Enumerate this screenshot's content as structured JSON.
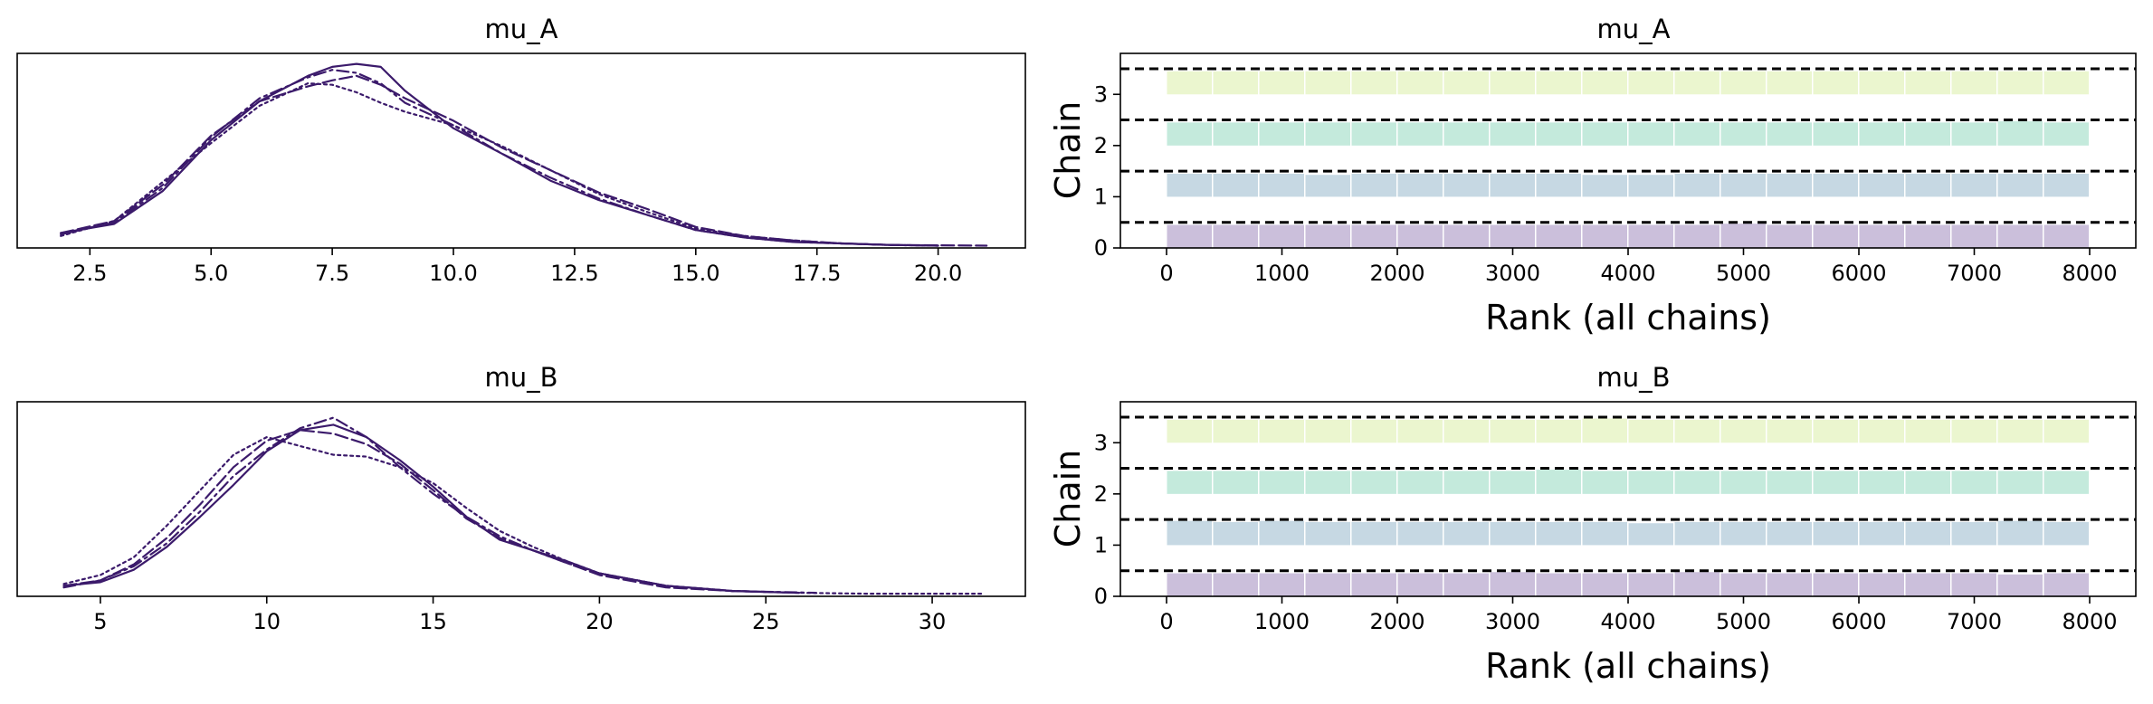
{
  "chart_data": [
    {
      "type": "line",
      "title": "mu_A",
      "xlabel": "",
      "ylabel": "",
      "xlim": [
        1.0,
        21.8
      ],
      "ylim": [
        0,
        0.13
      ],
      "yticks_visible": false,
      "xticks": [
        2.5,
        5.0,
        7.5,
        10.0,
        12.5,
        15.0,
        17.5,
        20.0
      ],
      "xtick_labels": [
        "2.5",
        "5.0",
        "7.5",
        "10.0",
        "12.5",
        "15.0",
        "17.5",
        "20.0"
      ],
      "color": "#3b1a6b",
      "series": [
        {
          "linestyle": "solid",
          "x": [
            1.9,
            3,
            4,
            5,
            6,
            7,
            7.5,
            8,
            8.5,
            9,
            10,
            11,
            12,
            13,
            14,
            15,
            16,
            17,
            18,
            19,
            20
          ],
          "y": [
            0.01,
            0.016,
            0.038,
            0.072,
            0.098,
            0.115,
            0.121,
            0.123,
            0.121,
            0.105,
            0.08,
            0.063,
            0.045,
            0.032,
            0.022,
            0.012,
            0.007,
            0.004,
            0.003,
            0.002,
            0.0015
          ]
        },
        {
          "linestyle": "dashed",
          "x": [
            1.9,
            3,
            4,
            5,
            6,
            7,
            7.5,
            8,
            8.5,
            9,
            10,
            11,
            12,
            13,
            14,
            15,
            16,
            17,
            18,
            19,
            21
          ],
          "y": [
            0.01,
            0.018,
            0.042,
            0.075,
            0.098,
            0.108,
            0.112,
            0.115,
            0.109,
            0.1,
            0.085,
            0.067,
            0.052,
            0.037,
            0.026,
            0.014,
            0.008,
            0.005,
            0.003,
            0.002,
            0.0015
          ]
        },
        {
          "linestyle": "dashdot",
          "x": [
            1.9,
            3,
            4,
            5,
            6,
            7,
            7.5,
            8,
            8.5,
            9,
            10,
            11,
            12,
            13,
            14,
            15,
            16,
            17,
            18,
            19,
            20
          ],
          "y": [
            0.009,
            0.017,
            0.04,
            0.074,
            0.1,
            0.114,
            0.119,
            0.117,
            0.11,
            0.097,
            0.082,
            0.063,
            0.047,
            0.033,
            0.022,
            0.012,
            0.007,
            0.004,
            0.003,
            0.002,
            0.0015
          ]
        },
        {
          "linestyle": "dotted",
          "x": [
            1.9,
            3,
            4,
            5,
            6,
            7,
            7.5,
            8,
            8.5,
            9,
            10,
            11,
            12,
            13,
            14,
            15,
            16,
            17,
            18,
            19,
            20
          ],
          "y": [
            0.008,
            0.018,
            0.044,
            0.07,
            0.095,
            0.11,
            0.109,
            0.104,
            0.097,
            0.091,
            0.082,
            0.068,
            0.052,
            0.036,
            0.024,
            0.013,
            0.008,
            0.005,
            0.003,
            0.002,
            0.0015
          ]
        }
      ]
    },
    {
      "type": "bar",
      "title": "mu_A",
      "xlabel": "Rank (all chains)",
      "ylabel": "Chain",
      "xlim": [
        -400,
        8400
      ],
      "ylim": [
        0,
        3.8
      ],
      "xticks": [
        0,
        1000,
        2000,
        3000,
        4000,
        5000,
        6000,
        7000,
        8000
      ],
      "xtick_labels": [
        "0",
        "1000",
        "2000",
        "3000",
        "4000",
        "5000",
        "6000",
        "7000",
        "8000"
      ],
      "yticks": [
        0,
        1,
        2,
        3
      ],
      "ytick_labels": [
        "0",
        "1",
        "2",
        "3"
      ],
      "reference_lines": [
        0.5,
        1.5,
        2.5,
        3.5
      ],
      "bin_width": 400,
      "series": [
        {
          "name": "0",
          "color": "#cbbfdb",
          "values": [
            1.0,
            1.0,
            1.0,
            1.0,
            1.0,
            1.0,
            1.0,
            1.0,
            1.0,
            1.0,
            1.0,
            1.0,
            1.05,
            1.0,
            1.0,
            1.0,
            1.0,
            1.0,
            1.0,
            1.0
          ]
        },
        {
          "name": "1",
          "color": "#c6d8e3",
          "values": [
            1.0,
            1.0,
            1.0,
            0.95,
            1.0,
            1.0,
            1.0,
            1.0,
            1.0,
            0.95,
            0.95,
            1.0,
            1.0,
            1.0,
            1.0,
            1.0,
            1.0,
            1.0,
            1.0,
            1.0
          ]
        },
        {
          "name": "2",
          "color": "#c4eadc",
          "values": [
            1.0,
            1.0,
            1.0,
            1.0,
            1.0,
            1.0,
            1.0,
            1.0,
            1.0,
            1.0,
            1.0,
            1.0,
            1.0,
            1.0,
            1.0,
            1.0,
            1.0,
            1.0,
            1.05,
            1.0
          ]
        },
        {
          "name": "3",
          "color": "#ebf6cf",
          "values": [
            1.0,
            1.0,
            1.0,
            1.0,
            1.0,
            1.0,
            1.0,
            1.0,
            1.0,
            1.0,
            1.0,
            1.0,
            1.0,
            1.0,
            1.0,
            1.0,
            1.0,
            1.0,
            1.0,
            1.0
          ]
        }
      ]
    },
    {
      "type": "line",
      "title": "mu_B",
      "xlabel": "",
      "ylabel": "",
      "xlim": [
        2.5,
        32.8
      ],
      "ylim": [
        0,
        0.11
      ],
      "yticks_visible": false,
      "xticks": [
        5,
        10,
        15,
        20,
        25,
        30
      ],
      "xtick_labels": [
        "5",
        "10",
        "15",
        "20",
        "25",
        "30"
      ],
      "color": "#3b1a6b",
      "series": [
        {
          "linestyle": "solid",
          "x": [
            3.9,
            5,
            6,
            7,
            8,
            9,
            10,
            11,
            12,
            13,
            14,
            15,
            16,
            17,
            18,
            19,
            20,
            22,
            24,
            26
          ],
          "y": [
            0.006,
            0.008,
            0.015,
            0.028,
            0.045,
            0.063,
            0.082,
            0.094,
            0.097,
            0.09,
            0.077,
            0.062,
            0.045,
            0.032,
            0.026,
            0.02,
            0.013,
            0.006,
            0.003,
            0.002
          ]
        },
        {
          "linestyle": "dashed",
          "x": [
            3.9,
            5,
            6,
            7,
            8,
            9,
            10,
            11,
            12,
            13,
            14,
            15,
            16,
            17,
            18,
            19,
            20,
            22,
            24,
            26
          ],
          "y": [
            0.006,
            0.009,
            0.018,
            0.033,
            0.052,
            0.073,
            0.088,
            0.094,
            0.092,
            0.086,
            0.075,
            0.06,
            0.044,
            0.033,
            0.026,
            0.019,
            0.012,
            0.005,
            0.003,
            0.002
          ]
        },
        {
          "linestyle": "dashdot",
          "x": [
            3.9,
            5,
            6,
            7,
            8,
            9,
            10,
            11,
            12,
            13,
            14,
            15,
            16,
            17,
            18,
            19,
            20,
            22,
            24,
            26.5
          ],
          "y": [
            0.005,
            0.009,
            0.017,
            0.03,
            0.048,
            0.068,
            0.083,
            0.095,
            0.101,
            0.09,
            0.073,
            0.058,
            0.045,
            0.034,
            0.026,
            0.019,
            0.013,
            0.006,
            0.003,
            0.002
          ]
        },
        {
          "linestyle": "dotted",
          "x": [
            3.9,
            5,
            6,
            7,
            8,
            9,
            10,
            11,
            12,
            13,
            14,
            15,
            16,
            17,
            18,
            19,
            20,
            22,
            24,
            26,
            28,
            31.5
          ],
          "y": [
            0.007,
            0.012,
            0.022,
            0.04,
            0.06,
            0.08,
            0.09,
            0.085,
            0.08,
            0.079,
            0.073,
            0.064,
            0.05,
            0.037,
            0.028,
            0.02,
            0.013,
            0.006,
            0.003,
            0.002,
            0.0015,
            0.0015
          ]
        }
      ]
    },
    {
      "type": "bar",
      "title": "mu_B",
      "xlabel": "Rank (all chains)",
      "ylabel": "Chain",
      "xlim": [
        -400,
        8400
      ],
      "ylim": [
        0,
        3.8
      ],
      "xticks": [
        0,
        1000,
        2000,
        3000,
        4000,
        5000,
        6000,
        7000,
        8000
      ],
      "xtick_labels": [
        "0",
        "1000",
        "2000",
        "3000",
        "4000",
        "5000",
        "6000",
        "7000",
        "8000"
      ],
      "yticks": [
        0,
        1,
        2,
        3
      ],
      "ytick_labels": [
        "0",
        "1",
        "2",
        "3"
      ],
      "reference_lines": [
        0.5,
        1.5,
        2.5,
        3.5
      ],
      "bin_width": 400,
      "series": [
        {
          "name": "0",
          "color": "#cbbfdb",
          "values": [
            1.0,
            1.0,
            1.0,
            1.0,
            1.0,
            1.0,
            1.0,
            1.05,
            1.0,
            1.0,
            1.0,
            1.05,
            1.0,
            1.0,
            1.0,
            1.0,
            1.0,
            1.0,
            0.95,
            1.0
          ]
        },
        {
          "name": "1",
          "color": "#c6d8e3",
          "values": [
            1.05,
            1.0,
            1.05,
            1.0,
            1.0,
            1.0,
            1.0,
            1.0,
            1.0,
            1.0,
            0.95,
            1.0,
            1.0,
            1.0,
            1.0,
            1.0,
            1.0,
            1.0,
            1.05,
            1.0
          ]
        },
        {
          "name": "2",
          "color": "#c4eadc",
          "values": [
            1.0,
            1.0,
            1.0,
            1.0,
            1.0,
            1.0,
            1.0,
            1.0,
            1.05,
            1.0,
            1.0,
            1.0,
            1.0,
            1.0,
            1.0,
            1.0,
            1.0,
            1.0,
            1.0,
            1.0
          ]
        },
        {
          "name": "3",
          "color": "#ebf6cf",
          "values": [
            1.0,
            1.0,
            1.0,
            1.0,
            1.0,
            1.0,
            1.0,
            1.0,
            1.0,
            1.05,
            1.0,
            1.0,
            1.0,
            1.0,
            1.0,
            1.0,
            1.0,
            1.0,
            1.0,
            1.0
          ]
        }
      ]
    }
  ]
}
